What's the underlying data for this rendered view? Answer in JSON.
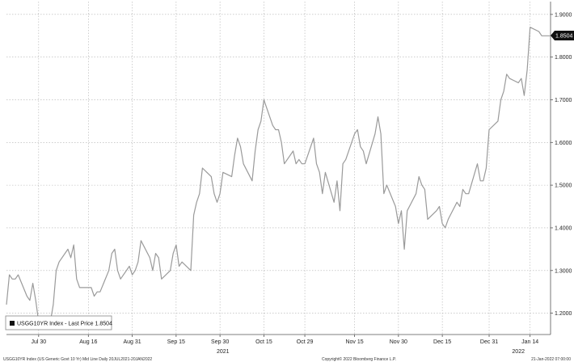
{
  "chart_data": {
    "type": "line",
    "title": "",
    "xlabel": "",
    "ylabel": "",
    "ylim": [
      1.15,
      1.93
    ],
    "y_ticks": [
      1.2,
      1.3,
      1.4,
      1.5,
      1.6,
      1.7,
      1.8,
      1.9
    ],
    "y_tick_labels": [
      "1.2000",
      "1.3000",
      "1.4000",
      "1.5000",
      "1.6000",
      "1.7000",
      "1.8000",
      "1.9000"
    ],
    "x_start": "2021-07-19",
    "x_end": "2022-01-21",
    "x_ticks": [
      {
        "date": "2021-07-30",
        "label": "Jul 30"
      },
      {
        "date": "2021-08-16",
        "label": "Aug 16"
      },
      {
        "date": "2021-08-31",
        "label": "Aug 31"
      },
      {
        "date": "2021-09-15",
        "label": "Sep 15"
      },
      {
        "date": "2021-09-30",
        "label": "Sep 30"
      },
      {
        "date": "2021-10-15",
        "label": "Oct 15"
      },
      {
        "date": "2021-10-29",
        "label": "Oct 29"
      },
      {
        "date": "2021-11-15",
        "label": "Nov 15"
      },
      {
        "date": "2021-11-30",
        "label": "Nov 30"
      },
      {
        "date": "2021-12-15",
        "label": "Dec 15"
      },
      {
        "date": "2021-12-31",
        "label": "Dec 31"
      },
      {
        "date": "2022-01-14",
        "label": "Jan 14"
      }
    ],
    "year_labels": [
      {
        "date": "2021-10-01",
        "label": "2021"
      },
      {
        "date": "2022-01-10",
        "label": "2022"
      }
    ],
    "grid": true,
    "legend_position": "bottom-left",
    "series": [
      {
        "name": "USGG10YR Index - Last Price 1.8504",
        "color": "#9a9a9a",
        "x": [
          "2021-07-19",
          "2021-07-20",
          "2021-07-21",
          "2021-07-22",
          "2021-07-23",
          "2021-07-26",
          "2021-07-27",
          "2021-07-28",
          "2021-07-29",
          "2021-07-30",
          "2021-08-02",
          "2021-08-03",
          "2021-08-04",
          "2021-08-05",
          "2021-08-06",
          "2021-08-09",
          "2021-08-10",
          "2021-08-11",
          "2021-08-12",
          "2021-08-13",
          "2021-08-16",
          "2021-08-17",
          "2021-08-18",
          "2021-08-19",
          "2021-08-20",
          "2021-08-23",
          "2021-08-24",
          "2021-08-25",
          "2021-08-26",
          "2021-08-27",
          "2021-08-30",
          "2021-08-31",
          "2021-09-01",
          "2021-09-02",
          "2021-09-03",
          "2021-09-06",
          "2021-09-07",
          "2021-09-08",
          "2021-09-09",
          "2021-09-10",
          "2021-09-13",
          "2021-09-14",
          "2021-09-15",
          "2021-09-16",
          "2021-09-17",
          "2021-09-20",
          "2021-09-21",
          "2021-09-22",
          "2021-09-23",
          "2021-09-24",
          "2021-09-27",
          "2021-09-28",
          "2021-09-29",
          "2021-09-30",
          "2021-10-01",
          "2021-10-04",
          "2021-10-05",
          "2021-10-06",
          "2021-10-07",
          "2021-10-08",
          "2021-10-11",
          "2021-10-12",
          "2021-10-13",
          "2021-10-14",
          "2021-10-15",
          "2021-10-18",
          "2021-10-19",
          "2021-10-20",
          "2021-10-21",
          "2021-10-22",
          "2021-10-25",
          "2021-10-26",
          "2021-10-27",
          "2021-10-28",
          "2021-10-29",
          "2021-11-01",
          "2021-11-02",
          "2021-11-03",
          "2021-11-04",
          "2021-11-05",
          "2021-11-08",
          "2021-11-09",
          "2021-11-10",
          "2021-11-11",
          "2021-11-12",
          "2021-11-15",
          "2021-11-16",
          "2021-11-17",
          "2021-11-18",
          "2021-11-19",
          "2021-11-22",
          "2021-11-23",
          "2021-11-24",
          "2021-11-25",
          "2021-11-26",
          "2021-11-29",
          "2021-11-30",
          "2021-12-01",
          "2021-12-02",
          "2021-12-03",
          "2021-12-06",
          "2021-12-07",
          "2021-12-08",
          "2021-12-09",
          "2021-12-10",
          "2021-12-13",
          "2021-12-14",
          "2021-12-15",
          "2021-12-16",
          "2021-12-17",
          "2021-12-20",
          "2021-12-21",
          "2021-12-22",
          "2021-12-23",
          "2021-12-24",
          "2021-12-27",
          "2021-12-28",
          "2021-12-29",
          "2021-12-30",
          "2021-12-31",
          "2022-01-03",
          "2022-01-04",
          "2022-01-05",
          "2022-01-06",
          "2022-01-07",
          "2022-01-10",
          "2022-01-11",
          "2022-01-12",
          "2022-01-13",
          "2022-01-14",
          "2022-01-17",
          "2022-01-18",
          "2022-01-19",
          "2022-01-20",
          "2022-01-21"
        ],
        "values": [
          1.22,
          1.29,
          1.28,
          1.28,
          1.29,
          1.24,
          1.23,
          1.27,
          1.23,
          1.18,
          1.17,
          1.18,
          1.22,
          1.3,
          1.32,
          1.35,
          1.33,
          1.36,
          1.28,
          1.26,
          1.26,
          1.26,
          1.24,
          1.25,
          1.25,
          1.3,
          1.34,
          1.35,
          1.3,
          1.28,
          1.31,
          1.29,
          1.3,
          1.32,
          1.37,
          1.33,
          1.3,
          1.34,
          1.33,
          1.28,
          1.3,
          1.34,
          1.36,
          1.31,
          1.32,
          1.3,
          1.43,
          1.46,
          1.48,
          1.54,
          1.52,
          1.48,
          1.46,
          1.48,
          1.53,
          1.52,
          1.57,
          1.61,
          1.59,
          1.55,
          1.51,
          1.58,
          1.63,
          1.65,
          1.7,
          1.64,
          1.63,
          1.63,
          1.6,
          1.55,
          1.58,
          1.55,
          1.56,
          1.55,
          1.55,
          1.61,
          1.55,
          1.53,
          1.48,
          1.53,
          1.46,
          1.51,
          1.44,
          1.55,
          1.56,
          1.62,
          1.63,
          1.59,
          1.58,
          1.55,
          1.62,
          1.66,
          1.62,
          1.48,
          1.5,
          1.45,
          1.41,
          1.44,
          1.35,
          1.44,
          1.48,
          1.52,
          1.5,
          1.49,
          1.42,
          1.44,
          1.45,
          1.41,
          1.4,
          1.42,
          1.46,
          1.45,
          1.49,
          1.48,
          1.48,
          1.55,
          1.51,
          1.51,
          1.54,
          1.63,
          1.65,
          1.7,
          1.72,
          1.76,
          1.75,
          1.74,
          1.75,
          1.71,
          1.77,
          1.87,
          1.86,
          1.85,
          1.85,
          1.85,
          1.85
        ]
      }
    ],
    "last_price_label": "1.8504"
  },
  "legend": {
    "label": "USGG10YR Index - Last Price 1.8504"
  },
  "footer": {
    "left": "USGG10YR Index (US Generic Govt 10 Yr) Mid Line  Daily 20JUL2021-20JAN2022",
    "center": "Copyright© 2022 Bloomberg Finance L.P.",
    "right": "21-Jan-2022 07:00:00"
  }
}
